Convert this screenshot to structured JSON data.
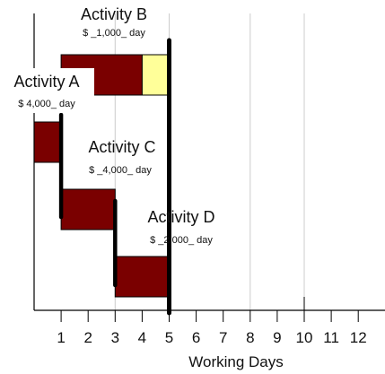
{
  "chart_data": {
    "type": "gantt",
    "xlabel": "Working Days",
    "ylabel": "",
    "title": "",
    "xlim": [
      0,
      13
    ],
    "x_ticks": [
      1,
      2,
      3,
      4,
      5,
      6,
      7,
      8,
      9,
      10,
      11,
      12
    ],
    "x_tick_labels": [
      "1",
      "2",
      "3",
      "4",
      "5",
      "6",
      "7",
      "8",
      "9",
      "10",
      "11",
      "12"
    ],
    "gridlines": [
      3,
      5,
      8,
      10
    ],
    "milestone_lines": [
      {
        "day": 1,
        "from_row": 1,
        "to_row": 2,
        "style": "bold"
      },
      {
        "day": 3,
        "from_row": 2,
        "to_row": 3,
        "style": "bold"
      },
      {
        "day": 5,
        "from_row": 0,
        "to_row": 3,
        "style": "bold-tall"
      }
    ],
    "activities": [
      {
        "name": "Activity A",
        "cost_label": "$ 4,000_ day",
        "start": 0,
        "end": 1
      },
      {
        "name": "Activity B",
        "cost_label": "$ _1,000_ day",
        "start": 1,
        "end": 4,
        "float_end": 5
      },
      {
        "name": "Activity C",
        "cost_label": "$ _4,000_ day",
        "start": 1,
        "end": 3
      },
      {
        "name": "Activity D",
        "cost_label": "$ _2,000_ day",
        "start": 3,
        "end": 5
      }
    ],
    "colors": {
      "bar": "#7a0000",
      "float": "#ffff99",
      "grid": "#cccccc",
      "axis": "#000000",
      "milestone": "#000000"
    }
  }
}
